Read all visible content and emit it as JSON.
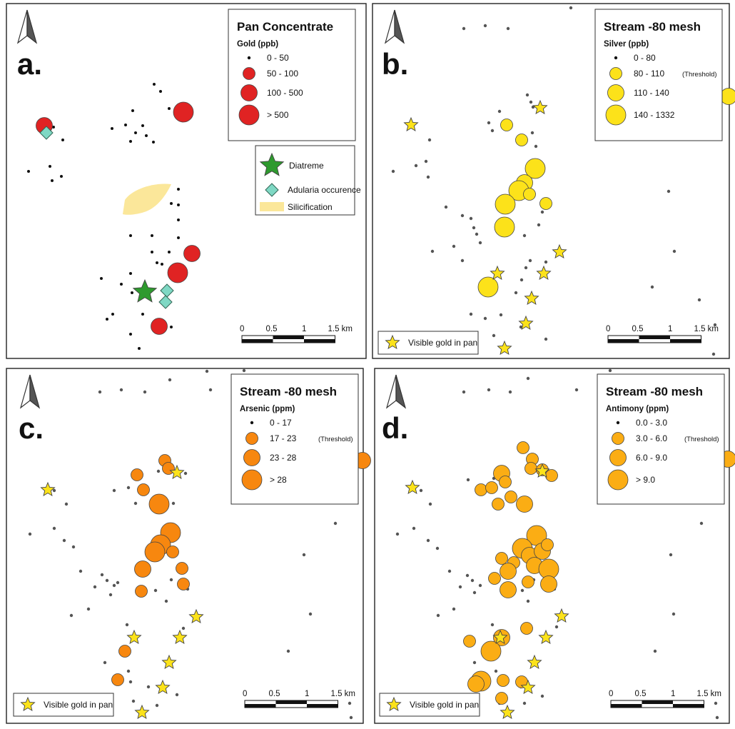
{
  "panels": [
    {
      "id": "a",
      "letter": "a.",
      "legend_title": "Pan Concentrate",
      "legend_sub": "Gold (ppb)",
      "classes": [
        "0 - 50",
        "50 - 100",
        "100 - 500",
        "> 500"
      ],
      "threshold_label": "",
      "color": "#e02323",
      "small_color": "#111111",
      "extra_legend": {
        "diatreme": "Diatreme",
        "adularia": "Adularia occurence",
        "silicification": "Silicification"
      },
      "visible_gold_label": "",
      "scale_labels": [
        "0",
        "0.5",
        "1",
        "1.5 km"
      ]
    },
    {
      "id": "b",
      "letter": "b.",
      "legend_title": "Stream -80 mesh",
      "legend_sub": "Silver (ppb)",
      "classes": [
        "0 - 80",
        "80 - 110",
        "110 - 140",
        "140 - 1332"
      ],
      "threshold_label": "(Threshold)",
      "color": "#fce21a",
      "small_color": "#555555",
      "visible_gold_label": "Visible gold in pan",
      "scale_labels": [
        "0",
        "0.5",
        "1",
        "1.5 km"
      ]
    },
    {
      "id": "c",
      "letter": "c.",
      "legend_title": "Stream -80 mesh",
      "legend_sub": "Arsenic (ppm)",
      "classes": [
        "0 - 17",
        "17 - 23",
        "23 - 28",
        "> 28"
      ],
      "threshold_label": "(Threshold)",
      "color": "#f7870f",
      "small_color": "#555555",
      "visible_gold_label": "Visible gold in pan",
      "scale_labels": [
        "0",
        "0.5",
        "1",
        "1.5 km"
      ]
    },
    {
      "id": "d",
      "letter": "d.",
      "legend_title": "Stream -80 mesh",
      "legend_sub": "Antimony (ppm)",
      "classes": [
        "0.0 - 3.0",
        "3.0 - 6.0",
        "6.0 - 9.0",
        "> 9.0"
      ],
      "threshold_label": "(Threshold)",
      "color": "#fbad14",
      "small_color": "#555555",
      "visible_gold_label": "Visible gold in pan",
      "scale_labels": [
        "0",
        "0.5",
        "1",
        "1.5 km"
      ]
    }
  ],
  "colors": {
    "star_gold": "#fce21a",
    "diatreme_green": "#2e9a2e",
    "adularia_cyan": "#7fd8c4",
    "silicification_yellow": "#fbe79a"
  }
}
